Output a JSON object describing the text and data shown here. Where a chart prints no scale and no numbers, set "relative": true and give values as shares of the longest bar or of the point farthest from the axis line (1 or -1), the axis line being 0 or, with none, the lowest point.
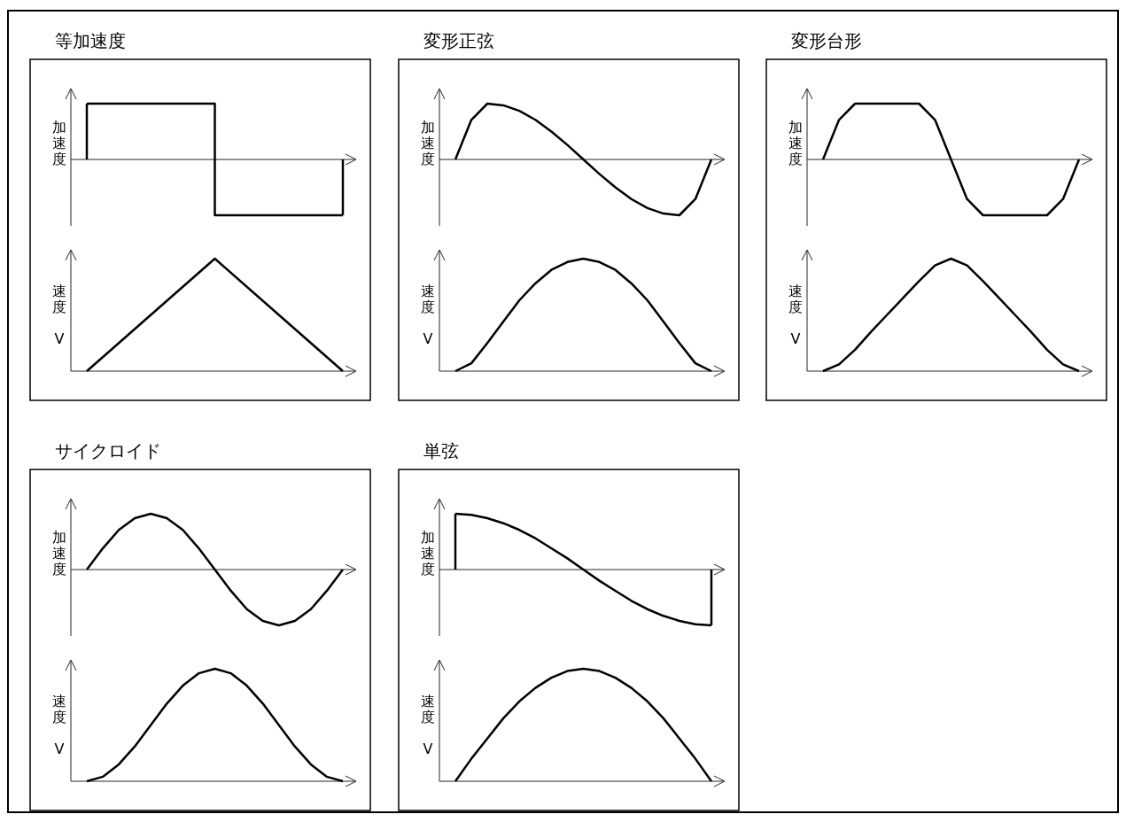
{
  "chart_data": [
    {
      "type": "step",
      "title": "等加速度",
      "ylabel": "加速度",
      "relative": true,
      "color": "#000000",
      "categories": [
        null,
        null,
        null
      ],
      "values": [
        1,
        -1,
        -1
      ]
    },
    {
      "type": "line",
      "ylabel": "速度 V",
      "relative": true,
      "color": "#000000",
      "categories": [
        null,
        null,
        null,
        null,
        null
      ],
      "values": [
        0,
        0.5,
        1,
        0.5,
        0
      ]
    },
    {
      "type": "line",
      "title": "変形正弦",
      "ylabel": "加速度",
      "relative": true,
      "color": "#000000",
      "categories": [
        null,
        null,
        null,
        null,
        null,
        null,
        null,
        null,
        null,
        null,
        null,
        null,
        null,
        null,
        null,
        null,
        null
      ],
      "values": [
        0,
        0.71,
        1,
        0.97,
        0.87,
        0.71,
        0.5,
        0.26,
        0,
        -0.26,
        -0.5,
        -0.71,
        -0.87,
        -0.97,
        -1,
        -0.71,
        0
      ]
    },
    {
      "type": "line",
      "ylabel": "速度 V",
      "relative": true,
      "color": "#000000",
      "categories": [
        null,
        null,
        null,
        null,
        null,
        null,
        null,
        null,
        null,
        null,
        null,
        null,
        null,
        null,
        null,
        null,
        null
      ],
      "values": [
        0,
        0.07,
        0.25,
        0.44,
        0.63,
        0.78,
        0.9,
        0.97,
        1,
        0.97,
        0.9,
        0.78,
        0.63,
        0.44,
        0.25,
        0.07,
        0
      ]
    },
    {
      "type": "line",
      "title": "変形台形",
      "ylabel": "加速度",
      "relative": true,
      "color": "#000000",
      "categories": [
        null,
        null,
        null,
        null,
        null,
        null,
        null,
        null,
        null,
        null,
        null,
        null,
        null,
        null,
        null,
        null,
        null
      ],
      "values": [
        0,
        0.71,
        1,
        1,
        1,
        1,
        1,
        0.71,
        0,
        -0.71,
        -1,
        -1,
        -1,
        -1,
        -1,
        -0.71,
        0
      ]
    },
    {
      "type": "line",
      "ylabel": "速度 V",
      "relative": true,
      "color": "#000000",
      "categories": [
        null,
        null,
        null,
        null,
        null,
        null,
        null,
        null,
        null,
        null,
        null,
        null,
        null,
        null,
        null,
        null,
        null
      ],
      "values": [
        0,
        0.06,
        0.19,
        0.35,
        0.5,
        0.65,
        0.8,
        0.94,
        1,
        0.94,
        0.8,
        0.65,
        0.5,
        0.35,
        0.19,
        0.06,
        0
      ]
    },
    {
      "type": "line",
      "title": "サイクロイド",
      "ylabel": "加速度",
      "relative": true,
      "color": "#000000",
      "categories": [
        null,
        null,
        null,
        null,
        null,
        null,
        null,
        null,
        null,
        null,
        null,
        null,
        null,
        null,
        null,
        null,
        null
      ],
      "values": [
        0,
        0.38,
        0.71,
        0.92,
        1,
        0.92,
        0.71,
        0.38,
        0,
        -0.38,
        -0.71,
        -0.92,
        -1,
        -0.92,
        -0.71,
        -0.38,
        0
      ]
    },
    {
      "type": "line",
      "ylabel": "速度 V",
      "relative": true,
      "color": "#000000",
      "categories": [
        null,
        null,
        null,
        null,
        null,
        null,
        null,
        null,
        null,
        null,
        null,
        null,
        null,
        null,
        null,
        null,
        null
      ],
      "values": [
        0,
        0.04,
        0.15,
        0.31,
        0.5,
        0.69,
        0.85,
        0.96,
        1,
        0.96,
        0.85,
        0.69,
        0.5,
        0.31,
        0.15,
        0.04,
        0
      ]
    },
    {
      "type": "line",
      "title": "単弦",
      "ylabel": "加速度",
      "relative": true,
      "color": "#000000",
      "categories": [
        null,
        null,
        null,
        null,
        null,
        null,
        null,
        null,
        null,
        null,
        null,
        null,
        null,
        null,
        null,
        null,
        null
      ],
      "values": [
        1,
        0.98,
        0.92,
        0.83,
        0.71,
        0.56,
        0.38,
        0.2,
        0,
        -0.2,
        -0.38,
        -0.56,
        -0.71,
        -0.83,
        -0.92,
        -0.98,
        -1
      ]
    },
    {
      "type": "line",
      "ylabel": "速度 V",
      "relative": true,
      "color": "#000000",
      "categories": [
        null,
        null,
        null,
        null,
        null,
        null,
        null,
        null,
        null,
        null,
        null,
        null,
        null,
        null,
        null,
        null,
        null
      ],
      "values": [
        0,
        0.2,
        0.38,
        0.56,
        0.71,
        0.83,
        0.92,
        0.98,
        1,
        0.98,
        0.92,
        0.83,
        0.71,
        0.56,
        0.38,
        0.2,
        0
      ]
    }
  ]
}
